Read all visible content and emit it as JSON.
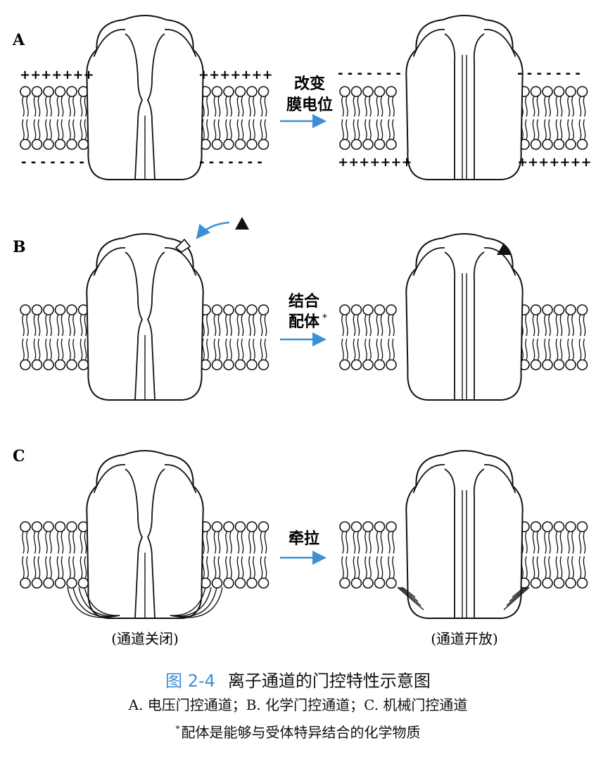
{
  "panels": [
    {
      "label": "A",
      "action_line1": "改变",
      "action_line2": "膜电位",
      "closed_top_charge": "+++++++",
      "closed_bottom_charge": "- - - - - - -",
      "open_top_charge": "- - - - - - -",
      "open_bottom_charge": "+++++++"
    },
    {
      "label": "B",
      "action_line1": "结合",
      "action_line2": "配体",
      "action_mark": "*"
    },
    {
      "label": "C",
      "action_line1": "牵拉"
    }
  ],
  "state_closed": "(通道关闭)",
  "state_open": "(通道开放)",
  "figure": {
    "number": "图 2-4",
    "title": "离子通道的门控特性示意图",
    "subtitle": "A. 电压门控通道；B. 化学门控通道；C. 机械门控通道",
    "note_mark": "*",
    "note": "配体是能够与受体特异结合的化学物质"
  },
  "colors": {
    "arrow": "#3b8fd4",
    "figure_number": "#3b8fd4",
    "ink": "#111111"
  }
}
